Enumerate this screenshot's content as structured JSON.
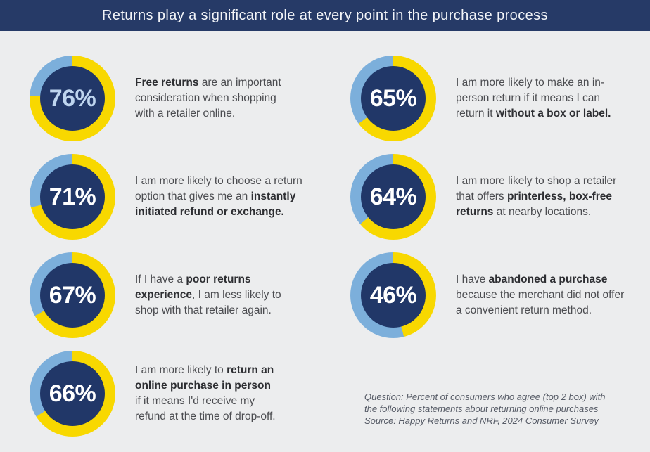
{
  "header": {
    "title": "Returns play a significant role at every point in the purchase process"
  },
  "colors": {
    "background": "#ecedee",
    "header_bg": "#263a67",
    "ring_fill_yellow": "#f8d800",
    "ring_rest_blue": "#7cafdb",
    "inner_circle_navy": "#213768",
    "percent_default": "#ffffff",
    "percent_accent_blue": "#bed5ef"
  },
  "stats": {
    "left": [
      {
        "pct": 76,
        "percent_label": "76%",
        "percent_color": "#bed5ef",
        "lines": [
          [
            {
              "t": "Free returns",
              "b": true
            },
            {
              "t": " are an important",
              "b": false
            }
          ],
          [
            {
              "t": "consideration when shopping",
              "b": false
            }
          ],
          [
            {
              "t": "with a retailer online.",
              "b": false
            }
          ]
        ]
      },
      {
        "pct": 71,
        "percent_label": "71%",
        "percent_color": "#ffffff",
        "lines": [
          [
            {
              "t": "I am more likely to choose a return",
              "b": false
            }
          ],
          [
            {
              "t": "option that gives me an ",
              "b": false
            },
            {
              "t": "instantly",
              "b": true
            }
          ],
          [
            {
              "t": "initiated refund or exchange.",
              "b": true
            }
          ]
        ]
      },
      {
        "pct": 67,
        "percent_label": "67%",
        "percent_color": "#ffffff",
        "lines": [
          [
            {
              "t": "If I have a ",
              "b": false
            },
            {
              "t": "poor returns",
              "b": true
            }
          ],
          [
            {
              "t": "experience",
              "b": true
            },
            {
              "t": ", I am less likely to",
              "b": false
            }
          ],
          [
            {
              "t": "shop with that retailer again.",
              "b": false
            }
          ]
        ]
      },
      {
        "pct": 66,
        "percent_label": "66%",
        "percent_color": "#ffffff",
        "lines": [
          [
            {
              "t": "I am more likely to ",
              "b": false
            },
            {
              "t": "return an",
              "b": true
            }
          ],
          [
            {
              "t": "online purchase in person",
              "b": true
            }
          ],
          [
            {
              "t": "if it means I'd receive my",
              "b": false
            }
          ],
          [
            {
              "t": "refund at the time of drop-off.",
              "b": false
            }
          ]
        ]
      }
    ],
    "right": [
      {
        "pct": 65,
        "percent_label": "65%",
        "percent_color": "#ffffff",
        "lines": [
          [
            {
              "t": "I am more likely to make an in-",
              "b": false
            }
          ],
          [
            {
              "t": "person return if it means I can",
              "b": false
            }
          ],
          [
            {
              "t": "return it ",
              "b": false
            },
            {
              "t": "without a box or label.",
              "b": true
            }
          ]
        ]
      },
      {
        "pct": 64,
        "percent_label": "64%",
        "percent_color": "#ffffff",
        "lines": [
          [
            {
              "t": "I am more likely to shop a retailer",
              "b": false
            }
          ],
          [
            {
              "t": "that offers ",
              "b": false
            },
            {
              "t": "printerless, box-free",
              "b": true
            }
          ],
          [
            {
              "t": "returns",
              "b": true
            },
            {
              "t": " at nearby locations.",
              "b": false
            }
          ]
        ]
      },
      {
        "pct": 46,
        "percent_label": "46%",
        "percent_color": "#ffffff",
        "lines": [
          [
            {
              "t": "I have ",
              "b": false
            },
            {
              "t": "abandoned a purchase",
              "b": true
            }
          ],
          [
            {
              "t": "because the merchant did not offer",
              "b": false
            }
          ],
          [
            {
              "t": "a convenient return method.",
              "b": false
            }
          ]
        ]
      }
    ]
  },
  "footnote": {
    "lines": [
      "Question: Percent of consumers who agree (top 2 box) with",
      "the following statements about returning online purchases",
      "Source: Happy Returns and NRF, 2024 Consumer Survey"
    ]
  },
  "chart_data": {
    "type": "pie",
    "title": "Returns play a significant role at every point in the purchase process",
    "unit": "%",
    "series": [
      {
        "name": "Free returns are an important consideration when shopping with a retailer online.",
        "value": 76
      },
      {
        "name": "I am more likely to choose a return option that gives me an instantly initiated refund or exchange.",
        "value": 71
      },
      {
        "name": "If I have a poor returns experience, I am less likely to shop with that retailer again.",
        "value": 67
      },
      {
        "name": "I am more likely to return an online purchase in person if it means I'd receive my refund at the time of drop-off.",
        "value": 66
      },
      {
        "name": "I am more likely to make an in-person return if it means I can return it without a box or label.",
        "value": 65
      },
      {
        "name": "I am more likely to shop a retailer that offers printerless, box-free returns at nearby locations.",
        "value": 64
      },
      {
        "name": "I have abandoned a purchase because the merchant did not offer a convenient return method.",
        "value": 46
      }
    ],
    "layout": {
      "style": "donut ring per statement, value share yellow clockwise from top, remainder light blue",
      "legend_position": "none",
      "columns": 2
    },
    "source": "Question: Percent of consumers who agree (top 2 box) with the following statements about returning online purchases / Source: Happy Returns and NRF, 2024 Consumer Survey"
  }
}
